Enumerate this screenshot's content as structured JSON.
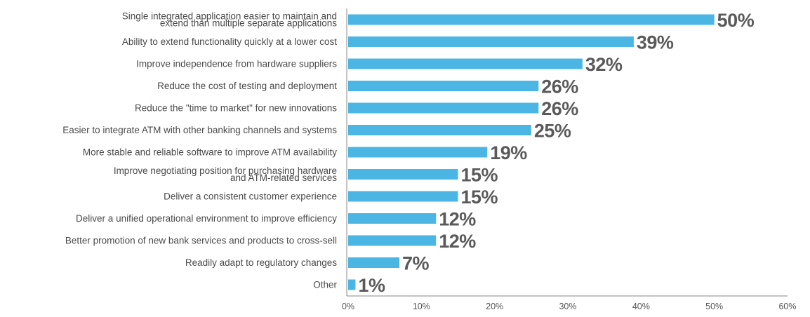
{
  "chart_data": {
    "type": "bar",
    "orientation": "horizontal",
    "title": "",
    "xlabel": "",
    "ylabel": "",
    "xlim": [
      0,
      60
    ],
    "x_ticks": [
      "0%",
      "10%",
      "20%",
      "30%",
      "40%",
      "50%",
      "60%"
    ],
    "grid": false,
    "bar_color": "#4bb6e3",
    "categories": [
      [
        "Single integrated application easier to maintain and",
        "extend than multiple separate applications"
      ],
      [
        "Ability to extend functionality quickly at a lower cost"
      ],
      [
        "Improve independence from hardware suppliers"
      ],
      [
        "Reduce the cost of testing and deployment"
      ],
      [
        "Reduce the \"time to market\" for new innovations"
      ],
      [
        "Easier to integrate ATM with other banking channels and systems"
      ],
      [
        "More stable and reliable software to improve ATM availability"
      ],
      [
        "Improve negotiating position for purchasing hardware",
        "and ATM-related services"
      ],
      [
        "Deliver a consistent customer experience"
      ],
      [
        "Deliver a unified operational environment to improve efficiency"
      ],
      [
        "Better promotion of new bank services and products to cross-sell"
      ],
      [
        "Readily adapt to regulatory changes"
      ],
      [
        "Other"
      ]
    ],
    "values": [
      50,
      39,
      32,
      26,
      26,
      25,
      19,
      15,
      15,
      12,
      12,
      7,
      1
    ],
    "value_labels": [
      "50%",
      "39%",
      "32%",
      "26%",
      "26%",
      "25%",
      "19%",
      "15%",
      "15%",
      "12%",
      "12%",
      "7%",
      "1%"
    ]
  }
}
